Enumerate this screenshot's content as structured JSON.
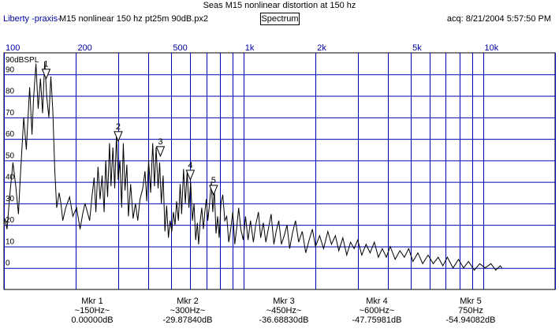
{
  "header": {
    "title": "Seas M15 nonlinear distortion at 150 hz",
    "brand": "Liberty -praxis-",
    "file": "M15 nonlinear 150 hz pt25m 90dB.px2",
    "mode_button": "Spectrum",
    "acq": "acq: 8/21/2004 5:57:50 PM"
  },
  "colors": {
    "grid": "#0000b0",
    "trace": "#000000",
    "label": "#0000a0"
  },
  "chart_data": {
    "type": "line",
    "xscale": "log",
    "xlim": [
      100,
      20000
    ],
    "ylim": [
      -10,
      100
    ],
    "ylabel": "90dBSPL",
    "x_tick_labels": [
      "100",
      "200",
      "500",
      "1k",
      "2k",
      "5k",
      "10k"
    ],
    "x_tick_values": [
      100,
      200,
      500,
      1000,
      2000,
      5000,
      10000
    ],
    "y_tick_labels": [
      "0",
      "10",
      "20",
      "30",
      "40",
      "50",
      "60",
      "70",
      "80",
      "90"
    ],
    "markers": [
      {
        "label": "1",
        "freq": 150,
        "level": 88
      },
      {
        "label": "2",
        "freq": 300,
        "level": 59
      },
      {
        "label": "3",
        "freq": 450,
        "level": 52
      },
      {
        "label": "4",
        "freq": 600,
        "level": 41
      },
      {
        "label": "5",
        "freq": 750,
        "level": 34
      }
    ],
    "series": [
      {
        "points": [
          [
            100,
            20
          ],
          [
            101,
            23
          ],
          [
            103,
            18
          ],
          [
            106,
            35
          ],
          [
            109,
            49
          ],
          [
            112,
            38
          ],
          [
            115,
            25
          ],
          [
            117,
            42
          ],
          [
            121,
            70
          ],
          [
            124,
            55
          ],
          [
            128,
            84
          ],
          [
            131,
            62
          ],
          [
            133,
            79
          ],
          [
            136,
            95
          ],
          [
            139,
            74
          ],
          [
            142,
            88
          ],
          [
            145,
            72
          ],
          [
            148,
            96
          ],
          [
            151,
            79
          ],
          [
            154,
            70
          ],
          [
            157,
            89
          ],
          [
            160,
            73
          ],
          [
            163,
            45
          ],
          [
            166,
            28
          ],
          [
            170,
            35
          ],
          [
            173,
            30
          ],
          [
            176,
            22
          ],
          [
            181,
            28
          ],
          [
            188,
            33
          ],
          [
            194,
            24
          ],
          [
            201,
            28
          ],
          [
            208,
            18
          ],
          [
            213,
            25
          ],
          [
            218,
            30
          ],
          [
            223,
            26
          ],
          [
            228,
            22
          ],
          [
            233,
            33
          ],
          [
            238,
            42
          ],
          [
            242,
            26
          ],
          [
            247,
            47
          ],
          [
            252,
            32
          ],
          [
            257,
            43
          ],
          [
            262,
            26
          ],
          [
            266,
            50
          ],
          [
            271,
            33
          ],
          [
            276,
            58
          ],
          [
            280,
            38
          ],
          [
            285,
            56
          ],
          [
            290,
            37
          ],
          [
            295,
            62
          ],
          [
            300,
            41
          ],
          [
            305,
            50
          ],
          [
            310,
            28
          ],
          [
            315,
            58
          ],
          [
            320,
            36
          ],
          [
            326,
            48
          ],
          [
            331,
            24
          ],
          [
            338,
            39
          ],
          [
            346,
            23
          ],
          [
            354,
            30
          ],
          [
            362,
            22
          ],
          [
            370,
            32
          ],
          [
            380,
            37
          ],
          [
            388,
            45
          ],
          [
            395,
            31
          ],
          [
            402,
            50
          ],
          [
            410,
            35
          ],
          [
            418,
            58
          ],
          [
            425,
            38
          ],
          [
            432,
            56
          ],
          [
            440,
            37
          ],
          [
            447,
            49
          ],
          [
            454,
            30
          ],
          [
            462,
            43
          ],
          [
            470,
            17
          ],
          [
            478,
            29
          ],
          [
            486,
            14
          ],
          [
            494,
            22
          ],
          [
            502,
            17
          ],
          [
            510,
            26
          ],
          [
            518,
            20
          ],
          [
            526,
            31
          ],
          [
            535,
            22
          ],
          [
            544,
            39
          ],
          [
            552,
            25
          ],
          [
            562,
            46
          ],
          [
            572,
            30
          ],
          [
            582,
            45
          ],
          [
            592,
            28
          ],
          [
            602,
            40
          ],
          [
            612,
            22
          ],
          [
            622,
            30
          ],
          [
            632,
            13
          ],
          [
            642,
            21
          ],
          [
            650,
            11
          ],
          [
            660,
            22
          ],
          [
            670,
            28
          ],
          [
            680,
            18
          ],
          [
            690,
            26
          ],
          [
            700,
            32
          ],
          [
            710,
            22
          ],
          [
            722,
            30
          ],
          [
            734,
            40
          ],
          [
            745,
            26
          ],
          [
            756,
            36
          ],
          [
            768,
            16
          ],
          [
            780,
            24
          ],
          [
            792,
            14
          ],
          [
            805,
            30
          ],
          [
            820,
            34
          ],
          [
            836,
            22
          ],
          [
            852,
            24
          ],
          [
            868,
            12
          ],
          [
            885,
            18
          ],
          [
            902,
            26
          ],
          [
            920,
            11
          ],
          [
            938,
            19
          ],
          [
            955,
            28
          ],
          [
            975,
            18
          ],
          [
            998,
            13
          ],
          [
            1020,
            24
          ],
          [
            1045,
            13
          ],
          [
            1070,
            22
          ],
          [
            1100,
            12
          ],
          [
            1125,
            20
          ],
          [
            1155,
            26
          ],
          [
            1180,
            14
          ],
          [
            1210,
            21
          ],
          [
            1240,
            12
          ],
          [
            1270,
            18
          ],
          [
            1305,
            25
          ],
          [
            1340,
            11
          ],
          [
            1370,
            17
          ],
          [
            1405,
            22
          ],
          [
            1440,
            11
          ],
          [
            1480,
            15
          ],
          [
            1520,
            20
          ],
          [
            1560,
            9
          ],
          [
            1600,
            16
          ],
          [
            1650,
            22
          ],
          [
            1700,
            12
          ],
          [
            1760,
            17
          ],
          [
            1820,
            7
          ],
          [
            1880,
            13
          ],
          [
            1940,
            18
          ],
          [
            2000,
            10
          ],
          [
            2080,
            15
          ],
          [
            2160,
            9
          ],
          [
            2250,
            17
          ],
          [
            2330,
            11
          ],
          [
            2420,
            15
          ],
          [
            2500,
            8
          ],
          [
            2600,
            14
          ],
          [
            2700,
            6
          ],
          [
            2800,
            12
          ],
          [
            2900,
            9
          ],
          [
            3000,
            13
          ],
          [
            3120,
            6
          ],
          [
            3250,
            11
          ],
          [
            3380,
            7
          ],
          [
            3520,
            12
          ],
          [
            3660,
            5
          ],
          [
            3800,
            9
          ],
          [
            3950,
            5
          ],
          [
            4100,
            10
          ],
          [
            4300,
            4
          ],
          [
            4500,
            8
          ],
          [
            4700,
            5
          ],
          [
            4900,
            9
          ],
          [
            5100,
            3
          ],
          [
            5350,
            7
          ],
          [
            5600,
            2
          ],
          [
            5900,
            6
          ],
          [
            6200,
            2
          ],
          [
            6500,
            5
          ],
          [
            6800,
            1
          ],
          [
            7100,
            5
          ],
          [
            7500,
            0
          ],
          [
            7900,
            4
          ],
          [
            8300,
            0
          ],
          [
            8700,
            3
          ],
          [
            9200,
            -1
          ],
          [
            9700,
            2
          ],
          [
            10200,
            0
          ],
          [
            10800,
            2
          ],
          [
            11300,
            -1
          ],
          [
            11800,
            1
          ],
          [
            12000,
            0
          ]
        ]
      }
    ]
  },
  "markers_readout": [
    {
      "name": "Mkr 1",
      "freq": "~150Hz~",
      "value": "0.00000dB"
    },
    {
      "name": "Mkr 2",
      "freq": "~300Hz~",
      "value": "-29.87840dB"
    },
    {
      "name": "Mkr 3",
      "freq": "~450Hz~",
      "value": "-36.68830dB"
    },
    {
      "name": "Mkr 4",
      "freq": "~600Hz~",
      "value": "-47.75981dB"
    },
    {
      "name": "Mkr 5",
      "freq": "750Hz",
      "value": "-54.94082dB"
    }
  ]
}
